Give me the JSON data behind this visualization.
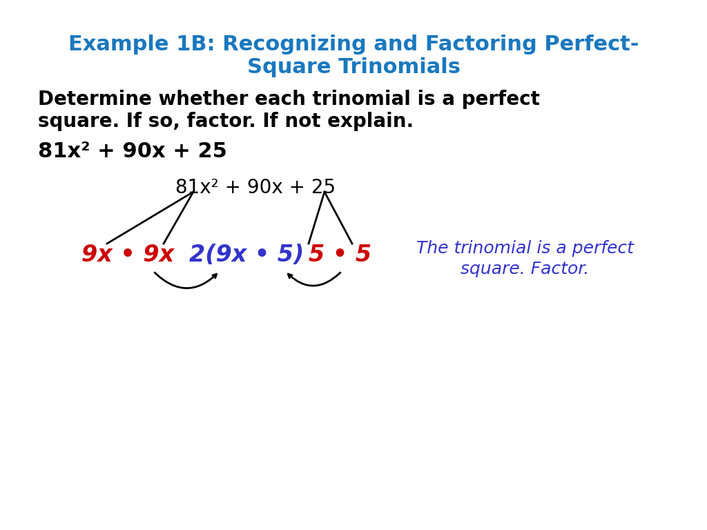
{
  "title_line1": "Example 1B: Recognizing and Factoring Perfect-",
  "title_line2": "Square Trinomials",
  "title_color": "#1a78bf",
  "body_text_line1": "Determine whether each trinomial is a perfect",
  "body_text_line2": "square. If so, factor. If not explain.",
  "problem_text": "81x² + 90x + 25",
  "diagram_expr": "81x² + 90x + 25",
  "red_text": "9x • 9x",
  "blue_text1": "2(9x • 5)",
  "blue_text2": "5 • 5",
  "italic_text_line1": "The trinomial is a perfect",
  "italic_text_line2": "square. Factor.",
  "background_color": "#ffffff",
  "black_color": "#000000",
  "red_color": "#cc0000",
  "blue_color": "#3333cc",
  "title_fontsize": 22,
  "body_fontsize": 20,
  "problem_fontsize": 22,
  "diagram_fontsize": 20,
  "italic_fontsize": 18
}
